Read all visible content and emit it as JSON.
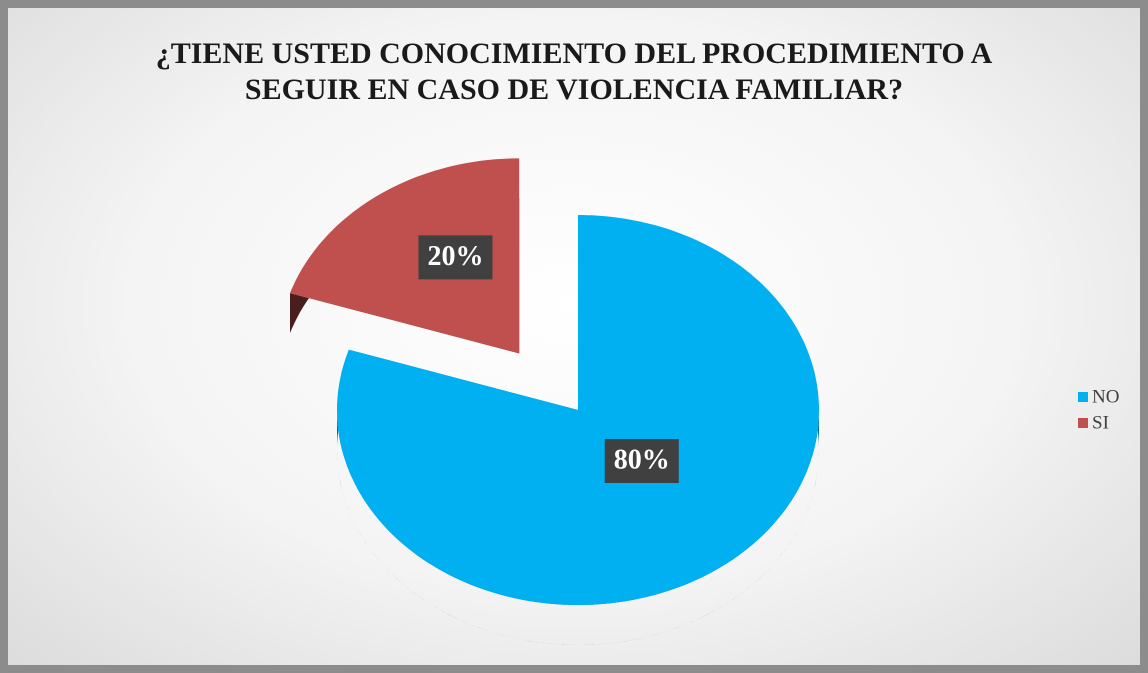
{
  "chart_data": {
    "type": "pie3d",
    "title": "¿TIENE USTED CONOCIMIENTO DEL PROCEDIMIENTO A SEGUIR EN CASO DE VIOLENCIA FAMILIAR?",
    "categories": [
      "NO",
      "SI"
    ],
    "values": [
      80,
      20
    ],
    "value_labels": [
      "80%",
      "20%"
    ],
    "colors": [
      "#00b0f0",
      "#c0504d"
    ],
    "legend": "right"
  }
}
